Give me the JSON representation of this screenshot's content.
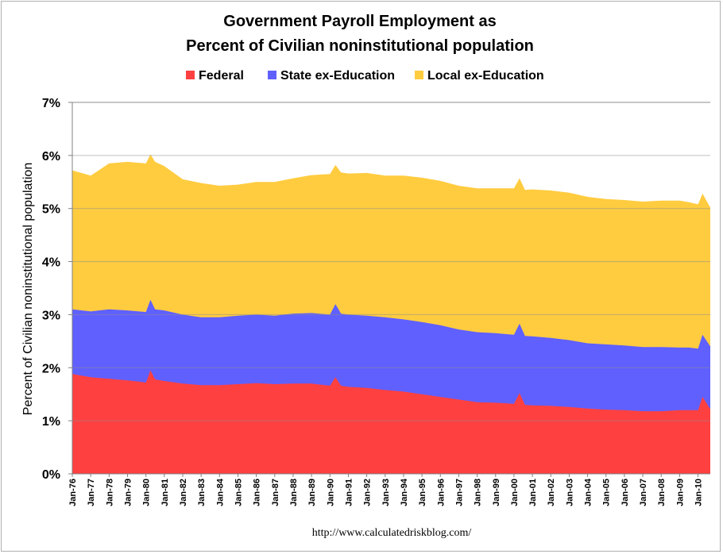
{
  "chart_data": {
    "type": "area",
    "stacked": true,
    "title_lines": [
      "Government Payroll Employment as",
      "Percent of Civilian noninstitutional population"
    ],
    "ylabel": "Percent of Civilian noninstitutional population",
    "ylim": [
      0,
      7
    ],
    "yticks": [
      0,
      1,
      2,
      3,
      4,
      5,
      6,
      7
    ],
    "ytick_labels": [
      "0%",
      "1%",
      "2%",
      "3%",
      "4%",
      "5%",
      "6%",
      "7%"
    ],
    "xlim": [
      1976.0,
      2010.667
    ],
    "x_tick_labels": [
      "Jan-76",
      "Jan-77",
      "Jan-78",
      "Jan-79",
      "Jan-80",
      "Jan-81",
      "Jan-82",
      "Jan-83",
      "Jan-84",
      "Jan-85",
      "Jan-86",
      "Jan-87",
      "Jan-88",
      "Jan-89",
      "Jan-90",
      "Jan-91",
      "Jan-92",
      "Jan-93",
      "Jan-94",
      "Jan-95",
      "Jan-96",
      "Jan-97",
      "Jan-98",
      "Jan-99",
      "Jan-00",
      "Jan-01",
      "Jan-02",
      "Jan-03",
      "Jan-04",
      "Jan-05",
      "Jan-06",
      "Jan-07",
      "Jan-08",
      "Jan-09",
      "Jan-10"
    ],
    "gridlines": "horizontal",
    "legend_position": "top",
    "source_note": "http://www.calculatedriskblog.com/",
    "series": [
      {
        "name": "Federal",
        "color": "#ff4040",
        "points": [
          [
            1976.0,
            1.88
          ],
          [
            1977.0,
            1.82
          ],
          [
            1978.0,
            1.79
          ],
          [
            1979.0,
            1.76
          ],
          [
            1979.6,
            1.74
          ],
          [
            1980.0,
            1.72
          ],
          [
            1980.25,
            1.95
          ],
          [
            1980.5,
            1.78
          ],
          [
            1981.0,
            1.75
          ],
          [
            1982.0,
            1.7
          ],
          [
            1983.0,
            1.67
          ],
          [
            1984.0,
            1.67
          ],
          [
            1985.0,
            1.69
          ],
          [
            1986.0,
            1.71
          ],
          [
            1987.0,
            1.69
          ],
          [
            1988.0,
            1.7
          ],
          [
            1989.0,
            1.7
          ],
          [
            1990.0,
            1.66
          ],
          [
            1990.3,
            1.82
          ],
          [
            1990.6,
            1.66
          ],
          [
            1991.0,
            1.64
          ],
          [
            1992.0,
            1.62
          ],
          [
            1993.0,
            1.58
          ],
          [
            1994.0,
            1.55
          ],
          [
            1995.0,
            1.5
          ],
          [
            1996.0,
            1.45
          ],
          [
            1997.0,
            1.4
          ],
          [
            1998.0,
            1.35
          ],
          [
            1999.0,
            1.34
          ],
          [
            2000.0,
            1.32
          ],
          [
            2000.3,
            1.52
          ],
          [
            2000.6,
            1.3
          ],
          [
            2001.0,
            1.29
          ],
          [
            2002.0,
            1.28
          ],
          [
            2003.0,
            1.26
          ],
          [
            2004.0,
            1.23
          ],
          [
            2005.0,
            1.21
          ],
          [
            2006.0,
            1.2
          ],
          [
            2007.0,
            1.18
          ],
          [
            2008.0,
            1.18
          ],
          [
            2009.0,
            1.2
          ],
          [
            2009.5,
            1.2
          ],
          [
            2010.0,
            1.2
          ],
          [
            2010.25,
            1.45
          ],
          [
            2010.667,
            1.22
          ]
        ]
      },
      {
        "name": "State ex-Education",
        "color": "#6060ff",
        "points": [
          [
            1976.0,
            3.1
          ],
          [
            1977.0,
            3.06
          ],
          [
            1978.0,
            3.1
          ],
          [
            1979.0,
            3.08
          ],
          [
            1980.0,
            3.05
          ],
          [
            1980.25,
            3.28
          ],
          [
            1980.5,
            3.1
          ],
          [
            1981.0,
            3.08
          ],
          [
            1982.0,
            3.0
          ],
          [
            1983.0,
            2.95
          ],
          [
            1984.0,
            2.95
          ],
          [
            1985.0,
            2.98
          ],
          [
            1986.0,
            3.0
          ],
          [
            1987.0,
            2.98
          ],
          [
            1988.0,
            3.02
          ],
          [
            1989.0,
            3.03
          ],
          [
            1990.0,
            3.0
          ],
          [
            1990.3,
            3.2
          ],
          [
            1990.6,
            3.02
          ],
          [
            1991.0,
            3.0
          ],
          [
            1992.0,
            2.98
          ],
          [
            1993.0,
            2.95
          ],
          [
            1994.0,
            2.91
          ],
          [
            1995.0,
            2.86
          ],
          [
            1996.0,
            2.8
          ],
          [
            1997.0,
            2.72
          ],
          [
            1998.0,
            2.67
          ],
          [
            1999.0,
            2.65
          ],
          [
            2000.0,
            2.62
          ],
          [
            2000.3,
            2.83
          ],
          [
            2000.6,
            2.6
          ],
          [
            2001.0,
            2.59
          ],
          [
            2002.0,
            2.56
          ],
          [
            2003.0,
            2.52
          ],
          [
            2004.0,
            2.46
          ],
          [
            2005.0,
            2.44
          ],
          [
            2006.0,
            2.42
          ],
          [
            2007.0,
            2.39
          ],
          [
            2008.0,
            2.39
          ],
          [
            2009.0,
            2.38
          ],
          [
            2009.5,
            2.38
          ],
          [
            2010.0,
            2.36
          ],
          [
            2010.25,
            2.62
          ],
          [
            2010.667,
            2.4
          ]
        ]
      },
      {
        "name": "Local ex-Education",
        "color": "#ffcc40",
        "points": [
          [
            1976.0,
            5.72
          ],
          [
            1977.0,
            5.62
          ],
          [
            1978.0,
            5.85
          ],
          [
            1979.0,
            5.88
          ],
          [
            1980.0,
            5.85
          ],
          [
            1980.25,
            6.02
          ],
          [
            1980.5,
            5.88
          ],
          [
            1981.0,
            5.8
          ],
          [
            1982.0,
            5.55
          ],
          [
            1983.0,
            5.48
          ],
          [
            1984.0,
            5.43
          ],
          [
            1985.0,
            5.45
          ],
          [
            1986.0,
            5.5
          ],
          [
            1987.0,
            5.5
          ],
          [
            1988.0,
            5.57
          ],
          [
            1989.0,
            5.63
          ],
          [
            1990.0,
            5.65
          ],
          [
            1990.3,
            5.82
          ],
          [
            1990.6,
            5.68
          ],
          [
            1991.0,
            5.66
          ],
          [
            1992.0,
            5.67
          ],
          [
            1993.0,
            5.62
          ],
          [
            1994.0,
            5.62
          ],
          [
            1995.0,
            5.58
          ],
          [
            1996.0,
            5.52
          ],
          [
            1997.0,
            5.43
          ],
          [
            1998.0,
            5.38
          ],
          [
            1999.0,
            5.38
          ],
          [
            2000.0,
            5.38
          ],
          [
            2000.3,
            5.57
          ],
          [
            2000.6,
            5.35
          ],
          [
            2001.0,
            5.36
          ],
          [
            2002.0,
            5.34
          ],
          [
            2003.0,
            5.3
          ],
          [
            2004.0,
            5.22
          ],
          [
            2005.0,
            5.18
          ],
          [
            2006.0,
            5.16
          ],
          [
            2007.0,
            5.13
          ],
          [
            2008.0,
            5.15
          ],
          [
            2009.0,
            5.15
          ],
          [
            2009.5,
            5.12
          ],
          [
            2010.0,
            5.08
          ],
          [
            2010.25,
            5.28
          ],
          [
            2010.667,
            5.02
          ]
        ]
      }
    ]
  }
}
